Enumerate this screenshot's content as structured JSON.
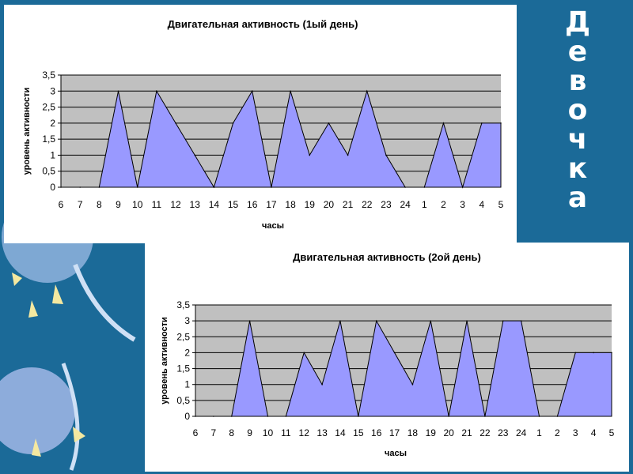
{
  "slide": {
    "side_word_letters": [
      "Д",
      "е",
      "в",
      "о",
      "ч",
      "к",
      "а"
    ]
  },
  "chart_data": [
    {
      "type": "area",
      "title": "Двигательная активность (1ый день)",
      "xlabel": "часы",
      "ylabel": "уровень активности",
      "categories": [
        "6",
        "7",
        "8",
        "9",
        "10",
        "11",
        "12",
        "13",
        "14",
        "15",
        "16",
        "17",
        "18",
        "19",
        "20",
        "21",
        "22",
        "23",
        "24",
        "1",
        "2",
        "3",
        "4",
        "5"
      ],
      "values": [
        0,
        0,
        0,
        3,
        0,
        3,
        2,
        1,
        0,
        2,
        3,
        0,
        3,
        1,
        2,
        1,
        3,
        1,
        0,
        0,
        2,
        0,
        2,
        2
      ],
      "ylim": [
        0,
        3.5
      ],
      "yticks": [
        "0",
        "0,5",
        "1",
        "1,5",
        "2",
        "2,5",
        "3",
        "3,5"
      ],
      "grid": true,
      "colors": {
        "fill": "#9999ff",
        "plot_bg": "#c0c0c0",
        "line": "#000000"
      }
    },
    {
      "type": "area",
      "title": "Двигательная активность (2ой день)",
      "xlabel": "часы",
      "ylabel": "уровень активности",
      "categories": [
        "6",
        "7",
        "8",
        "9",
        "10",
        "11",
        "12",
        "13",
        "14",
        "15",
        "16",
        "17",
        "18",
        "19",
        "20",
        "21",
        "22",
        "23",
        "24",
        "1",
        "2",
        "3",
        "4",
        "5"
      ],
      "values": [
        0,
        0,
        0,
        3,
        0,
        0,
        2,
        1,
        3,
        0,
        3,
        2,
        1,
        3,
        0,
        3,
        0,
        3,
        3,
        0,
        0,
        2,
        2,
        2
      ],
      "ylim": [
        0,
        3.5
      ],
      "yticks": [
        "0",
        "0,5",
        "1",
        "1,5",
        "2",
        "2,5",
        "3",
        "3,5"
      ],
      "grid": true,
      "colors": {
        "fill": "#9999ff",
        "plot_bg": "#c0c0c0",
        "line": "#000000"
      }
    }
  ]
}
